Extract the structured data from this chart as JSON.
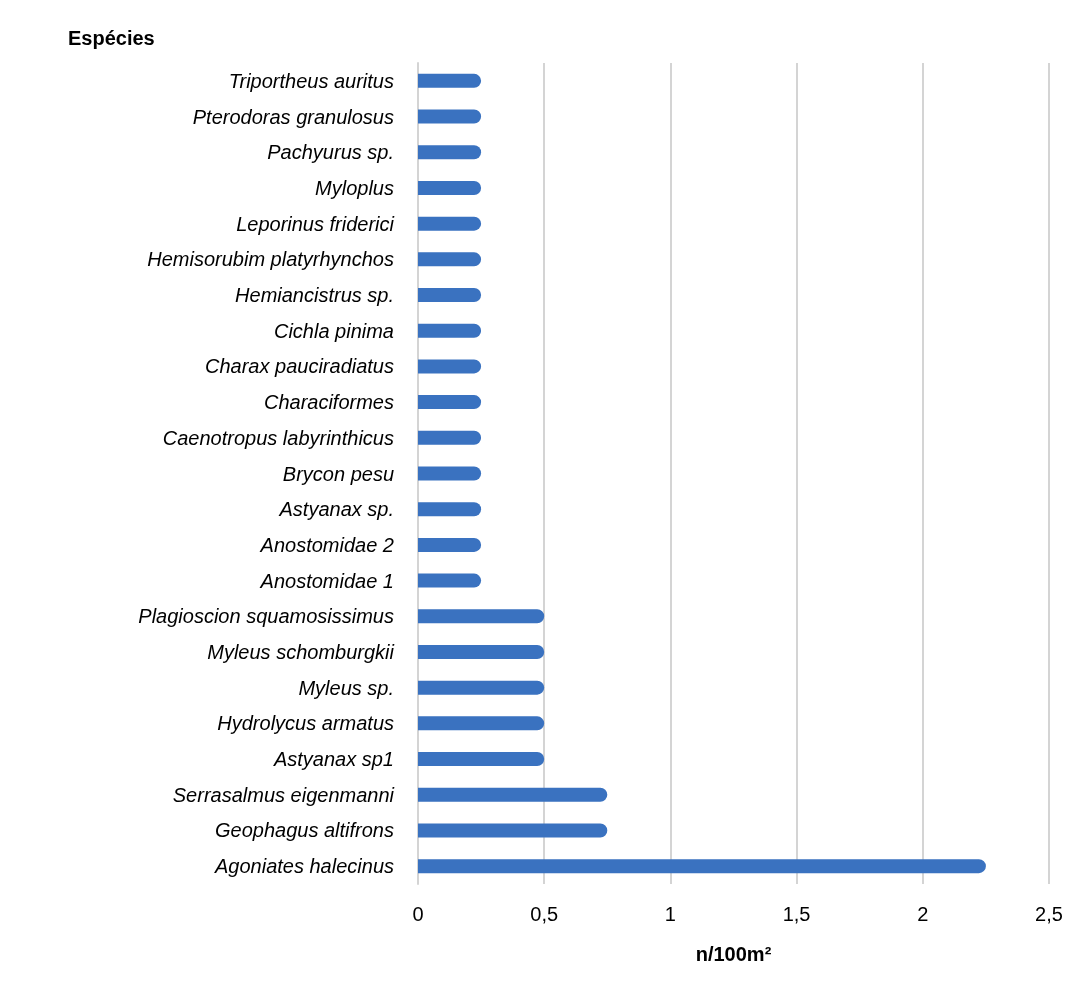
{
  "chart_data": {
    "type": "bar",
    "orientation": "horizontal",
    "ylabel": "Espécies",
    "xlabel": "n/100m²",
    "categories": [
      "Triportheus auritus",
      "Pterodoras granulosus",
      "Pachyurus sp.",
      "Myloplus",
      "Leporinus friderici",
      "Hemisorubim platyrhynchos",
      "Hemiancistrus sp.",
      "Cichla pinima",
      "Charax pauciradiatus",
      "Characiformes",
      "Caenotropus labyrinthicus",
      "Brycon pesu",
      "Astyanax sp.",
      "Anostomidae 2",
      "Anostomidae 1",
      "Plagioscion squamosissimus",
      "Myleus schomburgkii",
      "Myleus sp.",
      "Hydrolycus armatus",
      "Astyanax sp1",
      "Serrasalmus eigenmanni",
      "Geophagus altifrons",
      "Agoniates halecinus"
    ],
    "values": [
      0.25,
      0.25,
      0.25,
      0.25,
      0.25,
      0.25,
      0.25,
      0.25,
      0.25,
      0.25,
      0.25,
      0.25,
      0.25,
      0.25,
      0.25,
      0.5,
      0.5,
      0.5,
      0.5,
      0.5,
      0.75,
      0.75,
      2.25
    ],
    "color": "#3a72c0",
    "xlim": [
      0,
      2.5
    ],
    "xticks": [
      {
        "value": 0,
        "label": "0"
      },
      {
        "value": 0.5,
        "label": "0,5"
      },
      {
        "value": 1,
        "label": "1"
      },
      {
        "value": 1.5,
        "label": "1,5"
      },
      {
        "value": 2,
        "label": "2"
      },
      {
        "value": 2.5,
        "label": "2,5"
      }
    ],
    "grid": "x"
  }
}
